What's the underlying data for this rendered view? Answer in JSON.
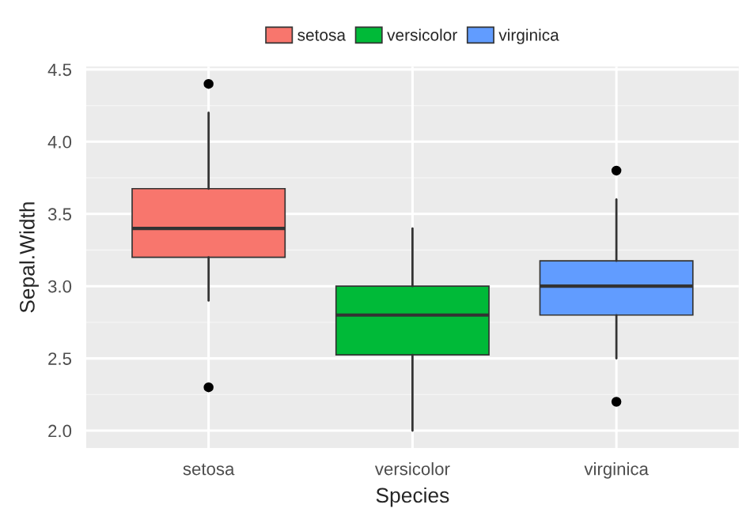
{
  "chart_data": {
    "type": "box",
    "xlabel": "Species",
    "ylabel": "Sepal.Width",
    "categories": [
      "setosa",
      "versicolor",
      "virginica"
    ],
    "series": [
      {
        "name": "setosa",
        "color": "#f8766d",
        "boxes": [
          {
            "low": 2.9,
            "q1": 3.2,
            "median": 3.4,
            "q3": 3.675,
            "high": 4.2,
            "outliers": [
              2.3,
              4.4
            ]
          },
          null,
          null
        ]
      },
      {
        "name": "versicolor",
        "color": "#00ba38",
        "boxes": [
          null,
          {
            "low": 2.0,
            "q1": 2.525,
            "median": 2.8,
            "q3": 3.0,
            "high": 3.4
          },
          null
        ]
      },
      {
        "name": "virginica",
        "color": "#619cff",
        "boxes": [
          null,
          null,
          {
            "low": 2.5,
            "q1": 2.8,
            "median": 3.0,
            "q3": 3.175,
            "high": 3.6,
            "outliers": [
              2.2,
              3.8
            ]
          }
        ]
      }
    ],
    "ylim": [
      1.88,
      4.52
    ],
    "yticks": [
      {
        "value": 2.0,
        "label": "2.0"
      },
      2.5,
      {
        "value": 3.0,
        "label": "3.0"
      },
      3.5,
      {
        "value": 4.0,
        "label": "4.0"
      },
      4.5
    ],
    "grid": true,
    "legend": "top"
  }
}
